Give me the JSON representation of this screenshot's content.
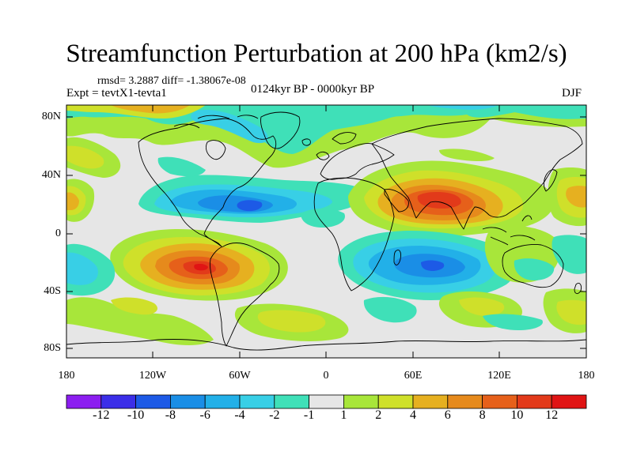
{
  "title": "Streamfunction Perturbation at 200 hPa (km2/s)",
  "stats": "rmsd= 3.2887 diff= -1.38067e-08",
  "expt": "Expt = tevtX1-tevta1",
  "period": "0124kyr BP - 0000kyr BP",
  "season": "DJF",
  "lat_labels": [
    "80N",
    "40N",
    "0",
    "40S",
    "80S"
  ],
  "lon_labels": [
    "180",
    "120W",
    "60W",
    "0",
    "60E",
    "120E",
    "180"
  ],
  "colorbar": {
    "labels": [
      "-12",
      "-10",
      "-8",
      "-6",
      "-4",
      "-2",
      "-1",
      "1",
      "2",
      "4",
      "6",
      "8",
      "10",
      "12"
    ],
    "colors": [
      "#8c1ef0",
      "#3b2ee8",
      "#1d5ae6",
      "#1a8ee6",
      "#22b0e8",
      "#38cfe6",
      "#3fe0b8",
      "#e6e6e6",
      "#a8e63a",
      "#cfe02a",
      "#e6b020",
      "#e68a1c",
      "#e6601a",
      "#e23a1a",
      "#e01414"
    ]
  }
}
